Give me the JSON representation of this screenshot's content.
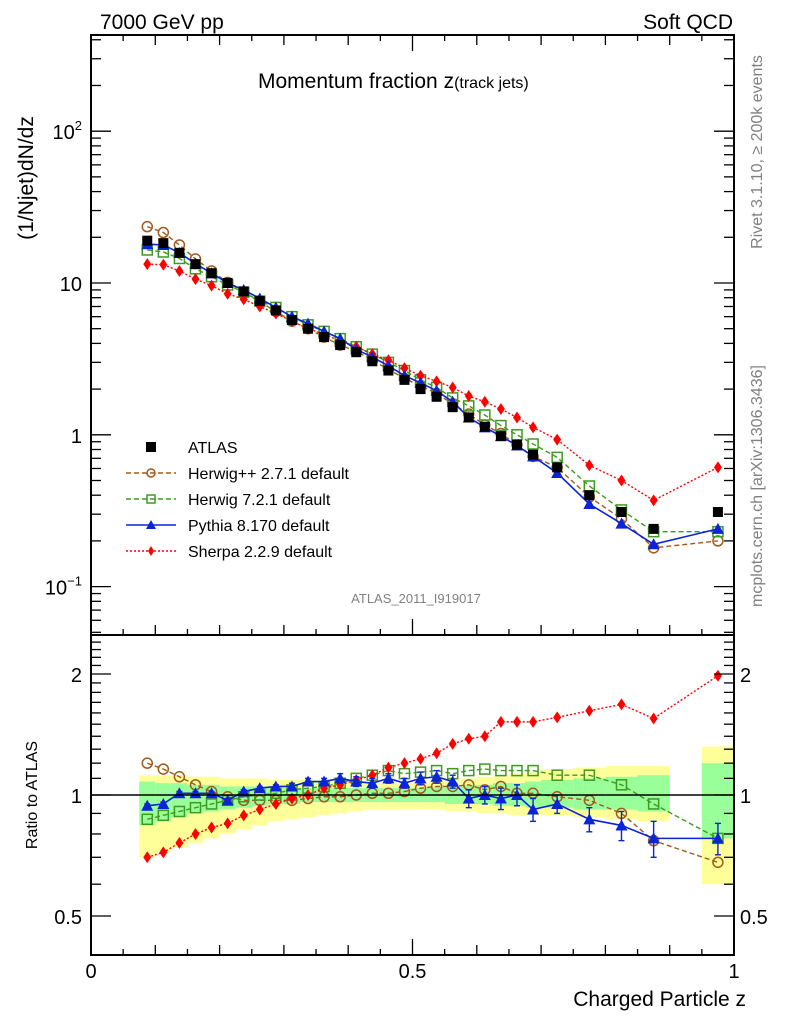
{
  "chart_data": {
    "type": "scatter",
    "header_left": "7000 GeV pp",
    "header_right": "Soft QCD",
    "title_main": "Momentum fraction z",
    "title_sub": "(track jets)",
    "ylabel": "(1/Njet)dN/dz",
    "ratio_ylabel": "Ratio to ATLAS",
    "xlabel": "Charged Particle z",
    "analysis_id": "ATLAS_2011_I919017",
    "side_text_top": "Rivet 3.1.10, ≥ 200k events",
    "side_text_bottom": "mcplots.cern.ch [arXiv:1306.3436]",
    "xlim": [
      0,
      1
    ],
    "ylim": [
      0.048,
      430
    ],
    "yscale": "log",
    "ratio_ylim": [
      0.4,
      2.5
    ],
    "ratio_yscale": "log",
    "x_ticks": [
      {
        "v": 0,
        "label": "0"
      },
      {
        "v": 0.5,
        "label": "0.5"
      },
      {
        "v": 1,
        "label": "1"
      }
    ],
    "y_ticks": [
      {
        "v": 100,
        "label": "10",
        "sup": "2"
      },
      {
        "v": 10,
        "label": "10",
        "sup": ""
      },
      {
        "v": 1,
        "label": "1",
        "sup": ""
      },
      {
        "v": 0.1,
        "label": "10",
        "sup": "−1"
      }
    ],
    "ratio_ticks": [
      {
        "v": 2,
        "label": "2"
      },
      {
        "v": 1,
        "label": "1"
      },
      {
        "v": 0.5,
        "label": "0.5"
      }
    ],
    "bins": [
      [
        0.075,
        0.1
      ],
      [
        0.1,
        0.125
      ],
      [
        0.125,
        0.15
      ],
      [
        0.15,
        0.175
      ],
      [
        0.175,
        0.2
      ],
      [
        0.2,
        0.225
      ],
      [
        0.225,
        0.25
      ],
      [
        0.25,
        0.275
      ],
      [
        0.275,
        0.3
      ],
      [
        0.3,
        0.325
      ],
      [
        0.325,
        0.35
      ],
      [
        0.35,
        0.375
      ],
      [
        0.375,
        0.4
      ],
      [
        0.4,
        0.425
      ],
      [
        0.425,
        0.45
      ],
      [
        0.45,
        0.475
      ],
      [
        0.475,
        0.5
      ],
      [
        0.5,
        0.525
      ],
      [
        0.525,
        0.55
      ],
      [
        0.55,
        0.575
      ],
      [
        0.575,
        0.6
      ],
      [
        0.6,
        0.625
      ],
      [
        0.625,
        0.65
      ],
      [
        0.65,
        0.675
      ],
      [
        0.675,
        0.7
      ],
      [
        0.7,
        0.75
      ],
      [
        0.75,
        0.8
      ],
      [
        0.8,
        0.85
      ],
      [
        0.85,
        0.9
      ],
      [
        0.95,
        1.0
      ]
    ],
    "band_total": [
      [
        0.7,
        1.12
      ],
      [
        0.72,
        1.12
      ],
      [
        0.74,
        1.12
      ],
      [
        0.76,
        1.11
      ],
      [
        0.78,
        1.11
      ],
      [
        0.8,
        1.1
      ],
      [
        0.82,
        1.1
      ],
      [
        0.84,
        1.1
      ],
      [
        0.86,
        1.09
      ],
      [
        0.87,
        1.09
      ],
      [
        0.88,
        1.09
      ],
      [
        0.89,
        1.08
      ],
      [
        0.9,
        1.08
      ],
      [
        0.91,
        1.08
      ],
      [
        0.92,
        1.07
      ],
      [
        0.92,
        1.07
      ],
      [
        0.92,
        1.07
      ],
      [
        0.92,
        1.07
      ],
      [
        0.92,
        1.08
      ],
      [
        0.91,
        1.09
      ],
      [
        0.91,
        1.1
      ],
      [
        0.9,
        1.11
      ],
      [
        0.9,
        1.12
      ],
      [
        0.89,
        1.13
      ],
      [
        0.89,
        1.14
      ],
      [
        0.89,
        1.16
      ],
      [
        0.88,
        1.17
      ],
      [
        0.87,
        1.18
      ],
      [
        0.86,
        1.18
      ],
      [
        0.6,
        1.32
      ]
    ],
    "band_stat": [
      [
        0.84,
        1.08
      ],
      [
        0.86,
        1.07
      ],
      [
        0.88,
        1.07
      ],
      [
        0.9,
        1.06
      ],
      [
        0.91,
        1.06
      ],
      [
        0.92,
        1.05
      ],
      [
        0.93,
        1.05
      ],
      [
        0.94,
        1.05
      ],
      [
        0.95,
        1.04
      ],
      [
        0.95,
        1.04
      ],
      [
        0.96,
        1.04
      ],
      [
        0.96,
        1.04
      ],
      [
        0.96,
        1.04
      ],
      [
        0.96,
        1.04
      ],
      [
        0.96,
        1.04
      ],
      [
        0.96,
        1.04
      ],
      [
        0.96,
        1.04
      ],
      [
        0.96,
        1.04
      ],
      [
        0.96,
        1.05
      ],
      [
        0.95,
        1.05
      ],
      [
        0.95,
        1.06
      ],
      [
        0.95,
        1.06
      ],
      [
        0.94,
        1.07
      ],
      [
        0.94,
        1.07
      ],
      [
        0.93,
        1.08
      ],
      [
        0.93,
        1.09
      ],
      [
        0.92,
        1.1
      ],
      [
        0.92,
        1.11
      ],
      [
        0.91,
        1.12
      ],
      [
        0.78,
        1.2
      ]
    ],
    "series": [
      {
        "name": "ATLAS",
        "legend": "ATLAS",
        "color": "#000000",
        "marker": "square-filled",
        "line": "none",
        "values": [
          19.0,
          18.3,
          15.8,
          13.3,
          11.6,
          10.0,
          8.8,
          7.6,
          6.6,
          5.7,
          5.0,
          4.4,
          3.9,
          3.5,
          3.05,
          2.65,
          2.3,
          2.0,
          1.78,
          1.52,
          1.3,
          1.13,
          0.98,
          0.86,
          0.74,
          0.61,
          0.4,
          0.31,
          0.24,
          0.31
        ]
      },
      {
        "name": "Herwig++ 2.7.1 default",
        "legend": "Herwig++ 2.7.1 default",
        "color": "#a05a1c",
        "marker": "circle-open",
        "line": "dashed",
        "values": [
          23.5,
          21.5,
          17.8,
          14.4,
          12.0,
          10.1,
          8.7,
          7.5,
          6.5,
          5.6,
          5.0,
          4.4,
          3.9,
          3.55,
          3.1,
          2.7,
          2.35,
          2.1,
          1.87,
          1.6,
          1.37,
          1.16,
          1.02,
          0.86,
          0.72,
          0.61,
          0.39,
          0.28,
          0.18,
          0.2
        ],
        "ratio": [
          1.2,
          1.16,
          1.11,
          1.06,
          1.02,
          0.99,
          0.97,
          0.97,
          0.97,
          0.97,
          0.98,
          0.99,
          0.99,
          1.0,
          1.01,
          1.01,
          1.02,
          1.04,
          1.05,
          1.05,
          1.06,
          1.03,
          1.05,
          1.01,
          1.01,
          0.99,
          0.97,
          0.9,
          0.77,
          0.68
        ]
      },
      {
        "name": "Herwig 7.2.1 default",
        "legend": "Herwig 7.2.1 default",
        "color": "#3e9a20",
        "marker": "square-open",
        "line": "dashed",
        "values": [
          16.5,
          16.0,
          14.5,
          12.4,
          11.0,
          9.7,
          8.7,
          7.6,
          6.9,
          6.0,
          5.3,
          4.8,
          4.3,
          3.8,
          3.4,
          3.0,
          2.65,
          2.3,
          2.05,
          1.75,
          1.55,
          1.35,
          1.15,
          1.0,
          0.87,
          0.71,
          0.46,
          0.32,
          0.23,
          0.23
        ],
        "ratio": [
          0.87,
          0.89,
          0.91,
          0.93,
          0.95,
          0.97,
          0.99,
          1.0,
          1.01,
          1.03,
          1.04,
          1.05,
          1.07,
          1.1,
          1.12,
          1.15,
          1.13,
          1.14,
          1.15,
          1.13,
          1.15,
          1.16,
          1.15,
          1.15,
          1.15,
          1.12,
          1.12,
          1.06,
          0.95,
          0.78
        ]
      },
      {
        "name": "Pythia 8.170 default",
        "legend": "Pythia 8.170 default",
        "color": "#0a24d6",
        "marker": "triangle-filled",
        "line": "solid",
        "values": [
          18.0,
          17.8,
          15.8,
          13.4,
          11.6,
          10.0,
          9.0,
          7.9,
          6.9,
          6.0,
          5.4,
          4.8,
          4.3,
          3.65,
          3.25,
          2.85,
          2.45,
          2.2,
          1.95,
          1.65,
          1.3,
          1.12,
          0.98,
          0.85,
          0.72,
          0.56,
          0.35,
          0.26,
          0.19,
          0.24
        ],
        "ratio": [
          0.94,
          0.95,
          1.01,
          1.01,
          1.01,
          0.97,
          1.02,
          1.04,
          1.05,
          1.05,
          1.08,
          1.08,
          1.1,
          1.08,
          1.07,
          1.1,
          1.07,
          1.1,
          1.11,
          1.08,
          0.98,
          1.0,
          0.98,
          1.0,
          0.92,
          0.95,
          0.87,
          0.84,
          0.78,
          0.78
        ],
        "ratio_err": [
          0.01,
          0.01,
          0.01,
          0.01,
          0.01,
          0.01,
          0.01,
          0.01,
          0.01,
          0.02,
          0.02,
          0.02,
          0.03,
          0.03,
          0.03,
          0.03,
          0.03,
          0.04,
          0.04,
          0.04,
          0.05,
          0.05,
          0.06,
          0.06,
          0.06,
          0.05,
          0.06,
          0.07,
          0.08,
          0.07
        ]
      },
      {
        "name": "Sherpa 2.2.9 default",
        "legend": "Sherpa 2.2.9 default",
        "color": "#ff0000",
        "marker": "diamond-filled",
        "line": "dotted",
        "values": [
          13.3,
          13.2,
          12.0,
          10.6,
          9.6,
          8.5,
          7.8,
          7.0,
          6.3,
          5.6,
          5.0,
          4.6,
          4.15,
          3.8,
          3.4,
          3.1,
          2.75,
          2.45,
          2.25,
          2.05,
          1.8,
          1.65,
          1.48,
          1.3,
          1.12,
          0.93,
          0.63,
          0.5,
          0.37,
          0.61
        ],
        "ratio": [
          0.7,
          0.72,
          0.76,
          0.8,
          0.83,
          0.85,
          0.89,
          0.92,
          0.95,
          0.98,
          1.0,
          1.04,
          1.06,
          1.09,
          1.12,
          1.17,
          1.2,
          1.23,
          1.27,
          1.34,
          1.38,
          1.4,
          1.52,
          1.52,
          1.52,
          1.56,
          1.62,
          1.68,
          1.55,
          1.98
        ]
      }
    ]
  }
}
